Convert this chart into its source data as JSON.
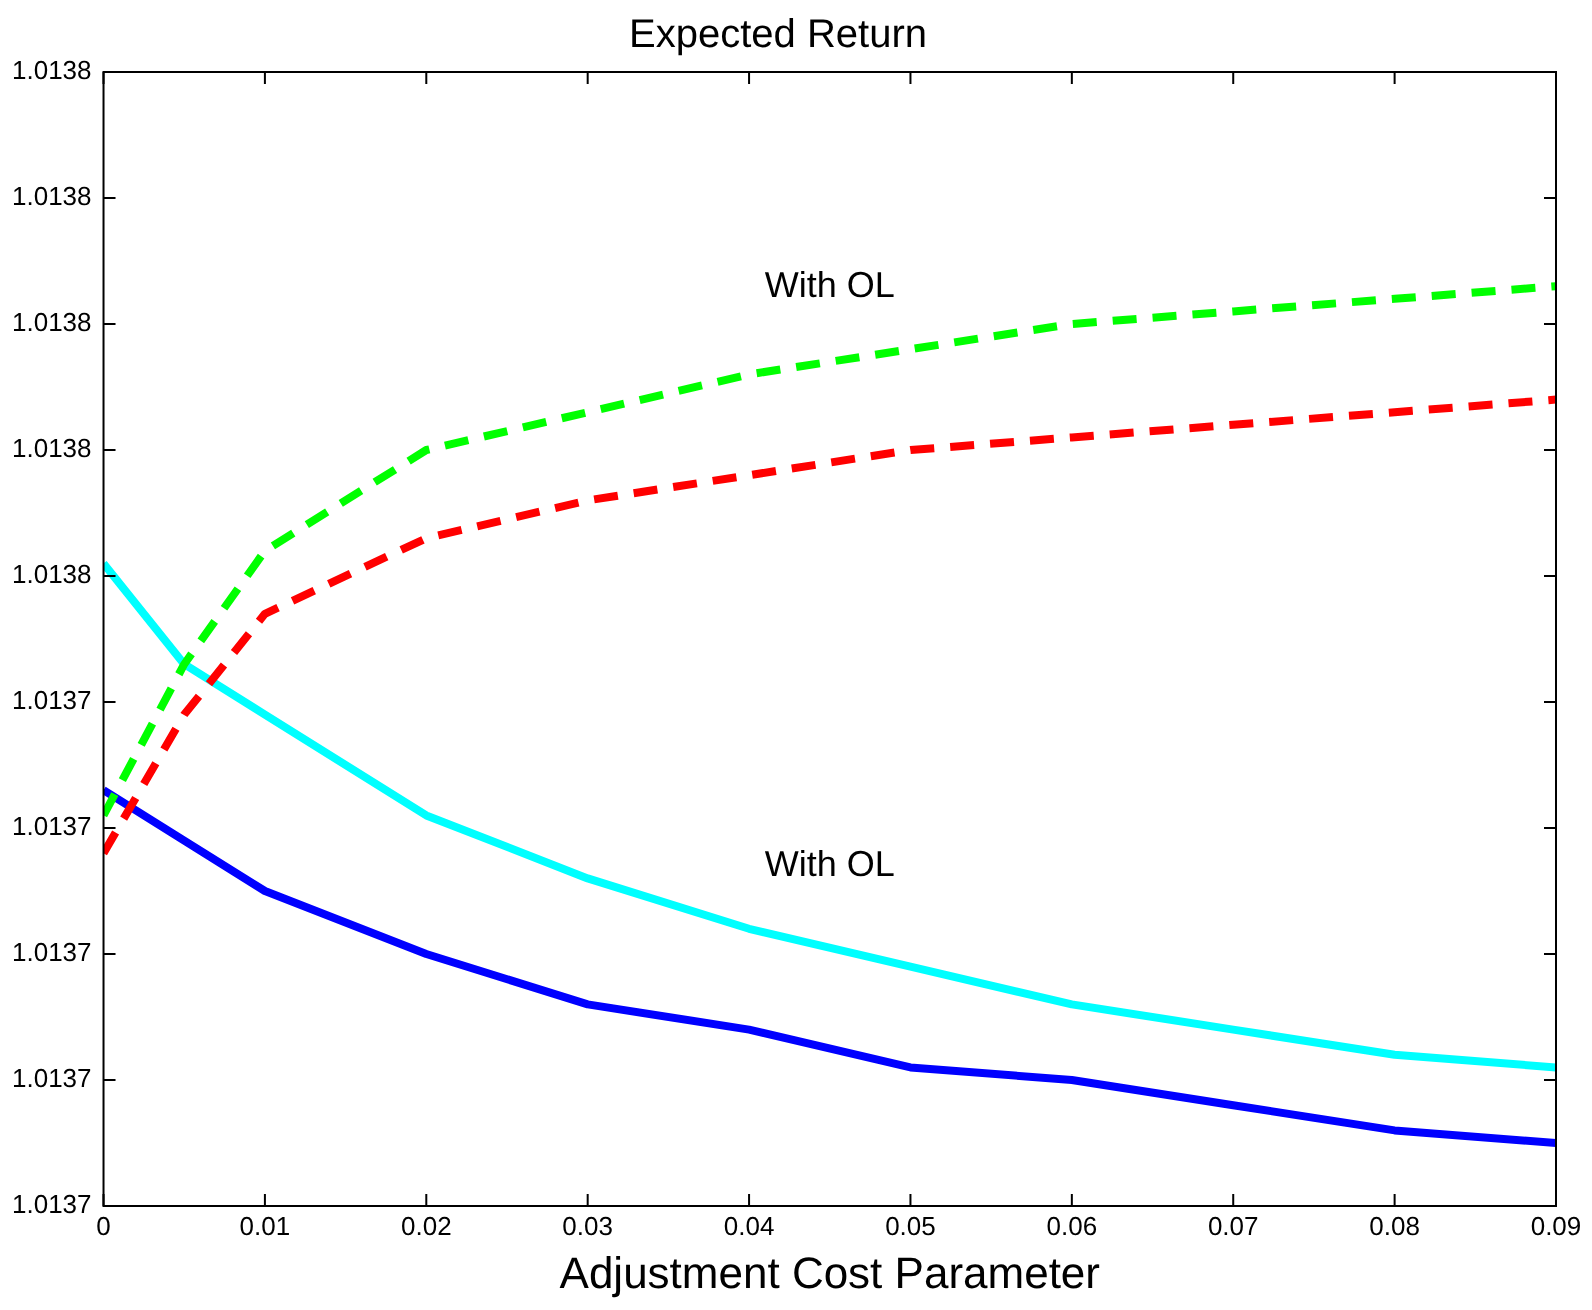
{
  "chart_data": {
    "type": "line",
    "title": "Expected Return",
    "xlabel": "Adjustment Cost Parameter",
    "x": [
      0,
      0.005,
      0.01,
      0.02,
      0.03,
      0.04,
      0.05,
      0.06,
      0.07,
      0.08,
      0.09
    ],
    "series": [
      {
        "color": "#00ff00",
        "line_style": "dashed",
        "values": [
          1.013731,
          1.013743,
          1.013752,
          1.01376,
          1.013763,
          1.013766,
          1.013768,
          1.01377,
          1.013771,
          1.013772,
          1.013773
        ]
      },
      {
        "color": "#ff0000",
        "line_style": "dashed",
        "values": [
          1.013728,
          1.013739,
          1.013747,
          1.013753,
          1.013756,
          1.013758,
          1.01376,
          1.013761,
          1.013762,
          1.013763,
          1.013764
        ]
      },
      {
        "color": "#00ffff",
        "line_style": "solid",
        "values": [
          1.013751,
          1.013743,
          1.013739,
          1.013731,
          1.013726,
          1.013722,
          1.013719,
          1.013716,
          1.013714,
          1.013712,
          1.013711
        ]
      },
      {
        "color": "#0000ff",
        "line_style": "solid",
        "values": [
          1.013733,
          1.013729,
          1.013725,
          1.01372,
          1.013716,
          1.013714,
          1.013711,
          1.01371,
          1.013708,
          1.013706,
          1.013705
        ]
      }
    ],
    "xlim": [
      0,
      0.09
    ],
    "xticks": [
      0,
      0.01,
      0.02,
      0.03,
      0.04,
      0.05,
      0.06,
      0.07,
      0.08,
      0.09
    ],
    "ylim": [
      1.0137,
      1.01379
    ],
    "yticks": [
      {
        "value": 1.0137,
        "label": "1.0137"
      },
      {
        "value": 1.01371,
        "label": "1.0137"
      },
      {
        "value": 1.01372,
        "label": "1.0137"
      },
      {
        "value": 1.01373,
        "label": "1.0137"
      },
      {
        "value": 1.01374,
        "label": "1.0137"
      },
      {
        "value": 1.01375,
        "label": "1.0138"
      },
      {
        "value": 1.01376,
        "label": "1.0138"
      },
      {
        "value": 1.01377,
        "label": "1.0138"
      },
      {
        "value": 1.01378,
        "label": "1.0138"
      },
      {
        "value": 1.01379,
        "label": "1.0138"
      }
    ],
    "annotations": [
      "With OL",
      "With OL"
    ],
    "grid": false,
    "legend": false,
    "marker": "none"
  }
}
